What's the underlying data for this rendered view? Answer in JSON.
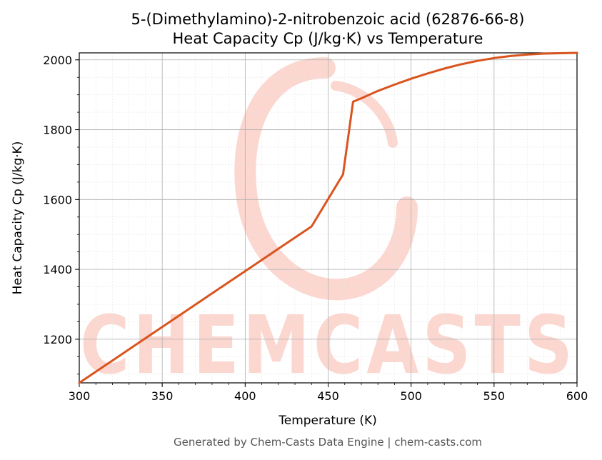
{
  "chart_data": {
    "type": "line",
    "title": "5-(Dimethylamino)-2-nitrobenzoic acid (62876-66-8)",
    "subtitle": "Heat Capacity Cp (J/kg·K) vs Temperature",
    "xlabel": "Temperature (K)",
    "ylabel": "Heat Capacity Cp (J/kg·K)",
    "xlim": [
      300,
      600
    ],
    "ylim": [
      1075,
      2020
    ],
    "xticks": [
      300,
      350,
      400,
      450,
      500,
      550,
      600
    ],
    "yticks": [
      1200,
      1400,
      1600,
      1800,
      2000
    ],
    "grid": true,
    "legend": "none",
    "series": [
      {
        "color": "#d9541e",
        "x": [
          300,
          320,
          340,
          360,
          380,
          400,
          420,
          440,
          459,
          465,
          470,
          480,
          490,
          500,
          510,
          520,
          530,
          540,
          550,
          560,
          570,
          580,
          590,
          600
        ],
        "y": [
          1075,
          1139,
          1203,
          1267,
          1331,
          1395,
          1459,
          1523,
          1672,
          1880,
          1890,
          1911,
          1929,
          1946,
          1961,
          1975,
          1987,
          1997,
          2005,
          2011,
          2015,
          2018,
          2019,
          2020
        ]
      }
    ]
  },
  "watermark": {
    "text": "CHEMCASTS",
    "color": "#fbd3cb"
  },
  "footer": "Generated by Chem-Casts Data Engine | chem-casts.com"
}
